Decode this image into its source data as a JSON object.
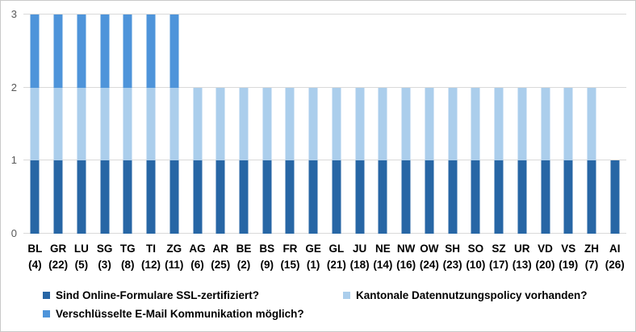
{
  "chart_data": {
    "type": "bar",
    "stacked": true,
    "title": "",
    "xlabel": "",
    "ylabel": "",
    "ylim": [
      0,
      3
    ],
    "yticks": [
      "0",
      "1",
      "2",
      "3"
    ],
    "grid": true,
    "legend_position": "bottom",
    "categories": [
      "BL",
      "GR",
      "LU",
      "SG",
      "TG",
      "TI",
      "ZG",
      "AG",
      "AR",
      "BE",
      "BS",
      "FR",
      "GE",
      "GL",
      "JU",
      "NE",
      "NW",
      "OW",
      "SH",
      "SO",
      "SZ",
      "UR",
      "VD",
      "VS",
      "ZH",
      "AI"
    ],
    "category_sublabels": [
      "(4)",
      "(22)",
      "(5)",
      "(3)",
      "(8)",
      "(12)",
      "(11)",
      "(6)",
      "(25)",
      "(2)",
      "(9)",
      "(15)",
      "(1)",
      "(21)",
      "(18)",
      "(14)",
      "(16)",
      "(24)",
      "(23)",
      "(10)",
      "(17)",
      "(13)",
      "(20)",
      "(19)",
      "(7)",
      "(26)"
    ],
    "series": [
      {
        "name": "Sind Online-Formulare SSL-zertifiziert?",
        "color": "#2766A5",
        "values": [
          1,
          1,
          1,
          1,
          1,
          1,
          1,
          1,
          1,
          1,
          1,
          1,
          1,
          1,
          1,
          1,
          1,
          1,
          1,
          1,
          1,
          1,
          1,
          1,
          1,
          1
        ]
      },
      {
        "name": "Kantonale Datennutzungspolicy vorhanden?",
        "color": "#ABCEEC",
        "values": [
          1,
          1,
          1,
          1,
          1,
          1,
          1,
          1,
          1,
          1,
          1,
          1,
          1,
          1,
          1,
          1,
          1,
          1,
          1,
          1,
          1,
          1,
          1,
          1,
          1,
          0
        ]
      },
      {
        "name": "Verschlüsselte E-Mail Kommunikation möglich?",
        "color": "#4E94DA",
        "values": [
          1,
          1,
          1,
          1,
          1,
          1,
          1,
          0,
          0,
          0,
          0,
          0,
          0,
          0,
          0,
          0,
          0,
          0,
          0,
          0,
          0,
          0,
          0,
          0,
          0,
          0
        ]
      }
    ],
    "colors": {
      "gridline": "#D9D9D9",
      "axis_text": "#595959",
      "label_text": "#000000",
      "border": "#C9C9C9",
      "background": "#FFFFFF"
    }
  }
}
